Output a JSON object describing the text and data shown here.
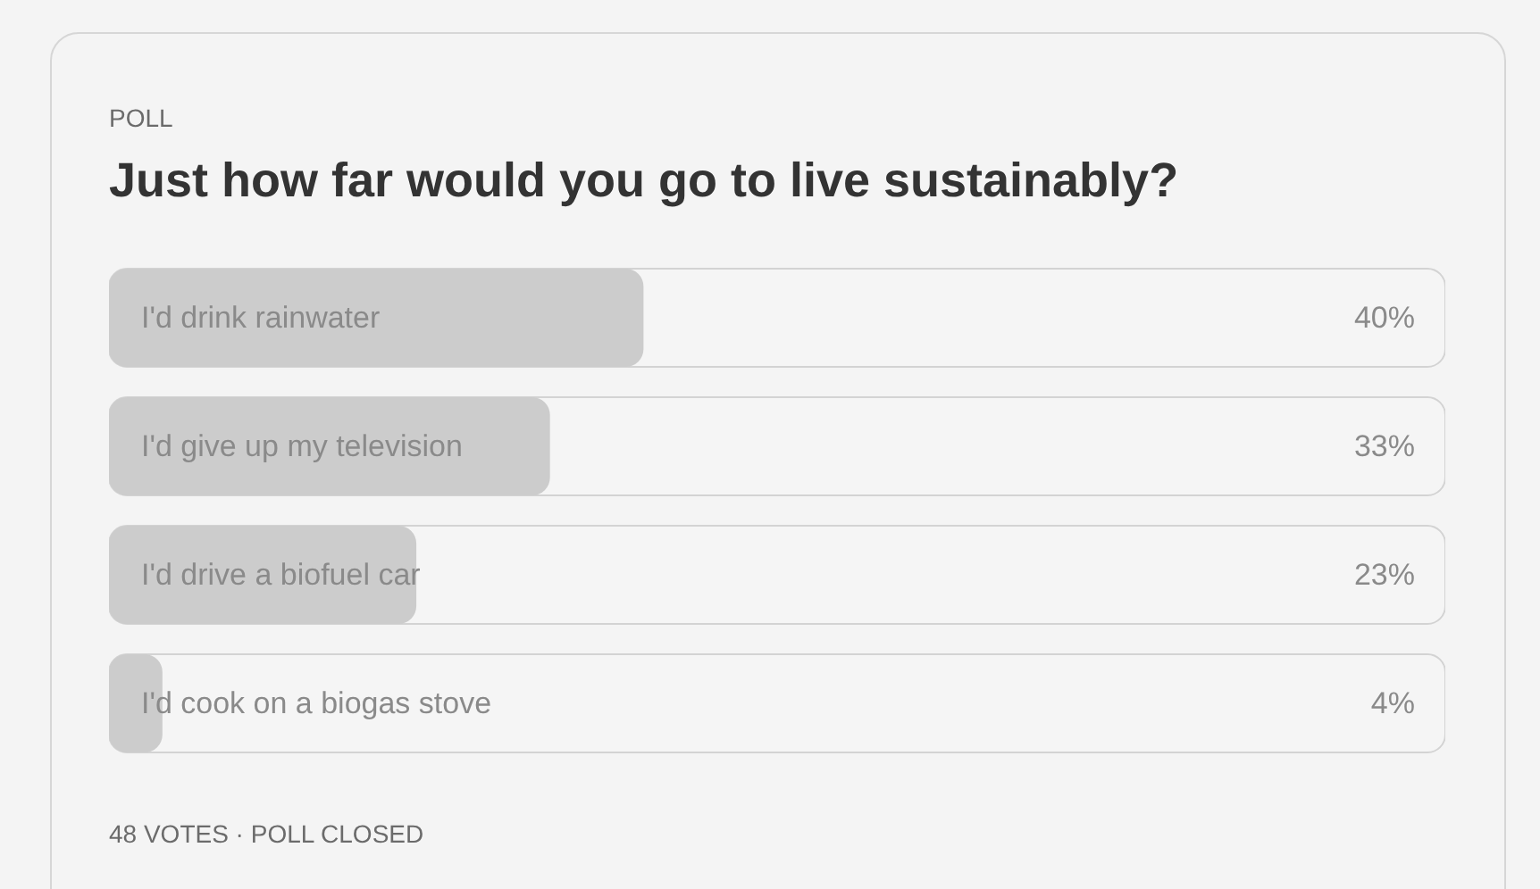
{
  "chart_data": {
    "type": "bar",
    "orientation": "horizontal",
    "title": "Just how far would you go to live sustainably?",
    "annotations": [
      "POLL",
      "48 VOTES · POLL CLOSED"
    ],
    "categories": [
      "I'd drink rainwater",
      "I'd give up my television",
      "I'd drive a biofuel car",
      "I'd cook on a biogas stove"
    ],
    "values": [
      40,
      33,
      23,
      4
    ],
    "value_labels": [
      "40%",
      "33%",
      "23%",
      "4%"
    ],
    "color": "#cccccc",
    "xlim": [
      0,
      100
    ],
    "tick_labels": "y"
  }
}
